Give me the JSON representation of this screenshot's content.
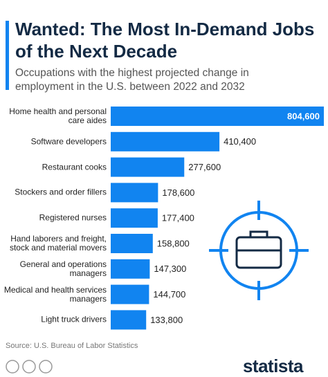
{
  "chart_data": {
    "type": "bar",
    "orientation": "horizontal",
    "title": "Wanted: The Most In-Demand Jobs of the Next Decade",
    "subtitle": "Occupations with the highest projected change in employment in the U.S. between 2022 and 2032",
    "categories": [
      "Home health and personal care aides",
      "Software developers",
      "Restaurant cooks",
      "Stockers and order fillers",
      "Registered nurses",
      "Hand laborers and freight, stock and material movers",
      "General and operations managers",
      "Medical and health services managers",
      "Light truck drivers"
    ],
    "values": [
      804600,
      410400,
      277600,
      178600,
      177400,
      158800,
      147300,
      144700,
      133800
    ],
    "value_labels": [
      "804,600",
      "410,400",
      "277,600",
      "178,600",
      "177,400",
      "158,800",
      "147,300",
      "144,700",
      "133,800"
    ],
    "color": "#1184f0",
    "source": "Source: U.S. Bureau of Labor Statistics",
    "brand": "statista"
  }
}
